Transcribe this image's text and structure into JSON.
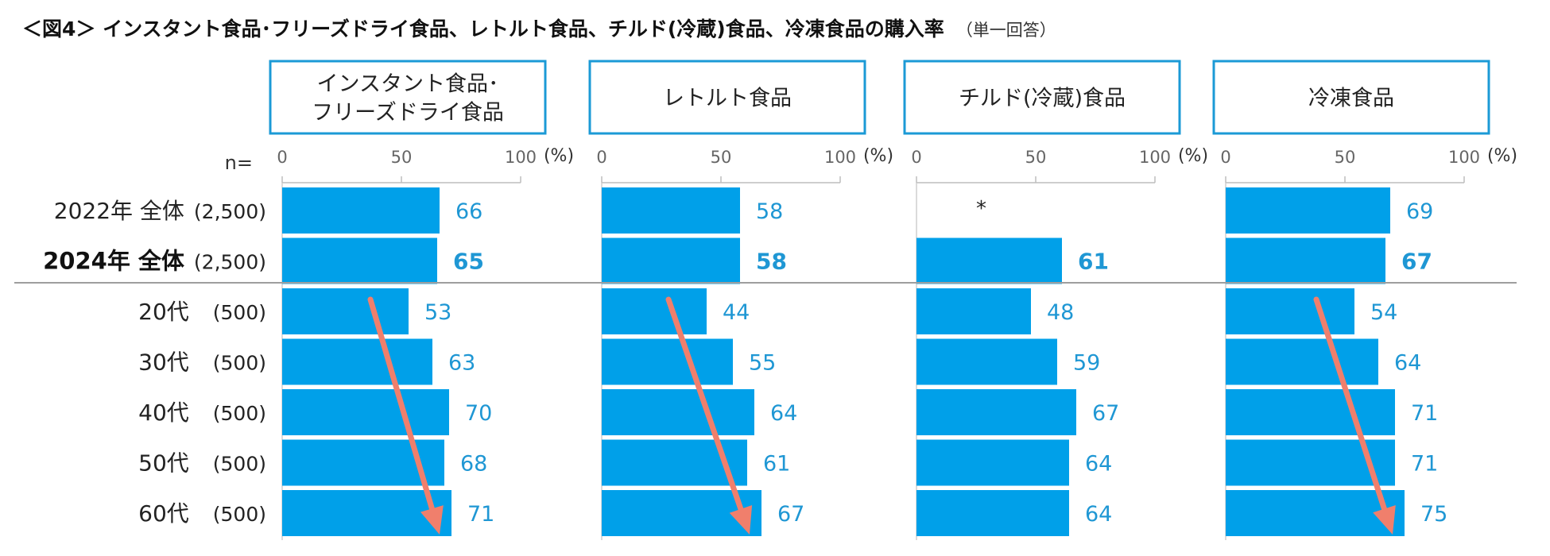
{
  "title": {
    "main": "＜図4＞ インスタント食品･フリーズドライ食品、レトルト食品、チルド(冷蔵)食品、冷凍食品の購入率",
    "sub": "（単一回答）"
  },
  "n_label": "n=",
  "unit": "(%)",
  "colors": {
    "bar": "#00a0e9",
    "value": "#1f97d4",
    "panel_border": "#1b9ad6",
    "trend_arrow": "#f07f6c"
  },
  "chart_data": {
    "type": "bar",
    "orientation": "horizontal",
    "xlim": [
      0,
      100
    ],
    "xticks": [
      "0",
      "50",
      "100"
    ],
    "rows": [
      {
        "label": "2022年 全体",
        "n": "(2,500)",
        "bold": false
      },
      {
        "label": "2024年 全体",
        "n": "(2,500)",
        "bold": true
      },
      {
        "label": "20代",
        "n": "(500)",
        "bold": false
      },
      {
        "label": "30代",
        "n": "(500)",
        "bold": false
      },
      {
        "label": "40代",
        "n": "(500)",
        "bold": false
      },
      {
        "label": "50代",
        "n": "(500)",
        "bold": false
      },
      {
        "label": "60代",
        "n": "(500)",
        "bold": false
      }
    ],
    "series": [
      {
        "name": "インスタント食品･フリーズドライ食品",
        "title_lines": [
          "インスタント食品･",
          "フリーズドライ食品"
        ],
        "values": [
          66,
          65,
          53,
          63,
          70,
          68,
          71
        ],
        "trend_arrow": true
      },
      {
        "name": "レトルト食品",
        "title_lines": [
          "レトルト食品"
        ],
        "values": [
          58,
          58,
          44,
          55,
          64,
          61,
          67
        ],
        "trend_arrow": true
      },
      {
        "name": "チルド(冷蔵)食品",
        "title_lines": [
          "チルド(冷蔵)食品"
        ],
        "values": [
          null,
          61,
          48,
          59,
          67,
          64,
          64
        ],
        "missing_mark": "*",
        "trend_arrow": false
      },
      {
        "name": "冷凍食品",
        "title_lines": [
          "冷凍食品"
        ],
        "values": [
          69,
          67,
          54,
          64,
          71,
          71,
          75
        ],
        "trend_arrow": true
      }
    ]
  }
}
